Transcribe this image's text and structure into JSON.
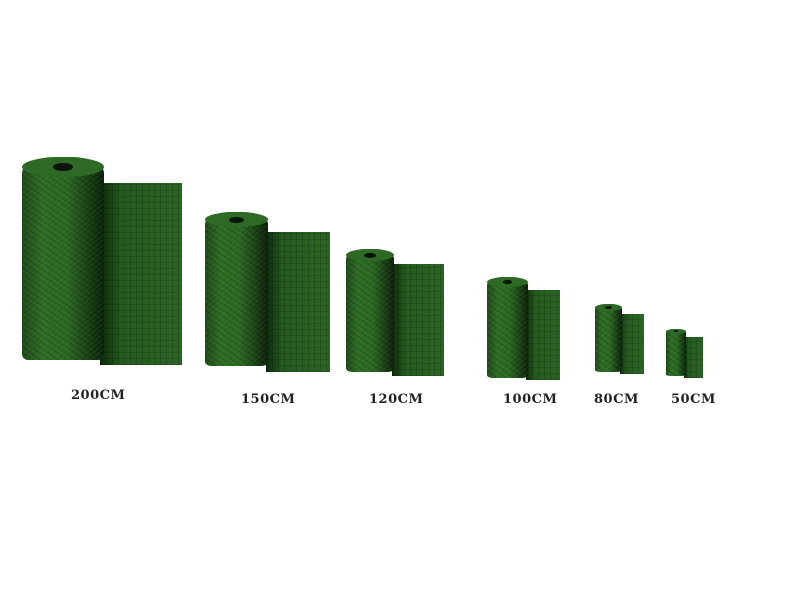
{
  "rolls": [
    {
      "label": "200CM"
    },
    {
      "label": "150CM"
    },
    {
      "label": "120CM"
    },
    {
      "label": "100CM"
    },
    {
      "label": "80CM"
    },
    {
      "label": "50CM"
    }
  ],
  "colors": {
    "grass": "#2c6a24",
    "shadow": "#0c200a",
    "background": "#ffffff"
  }
}
